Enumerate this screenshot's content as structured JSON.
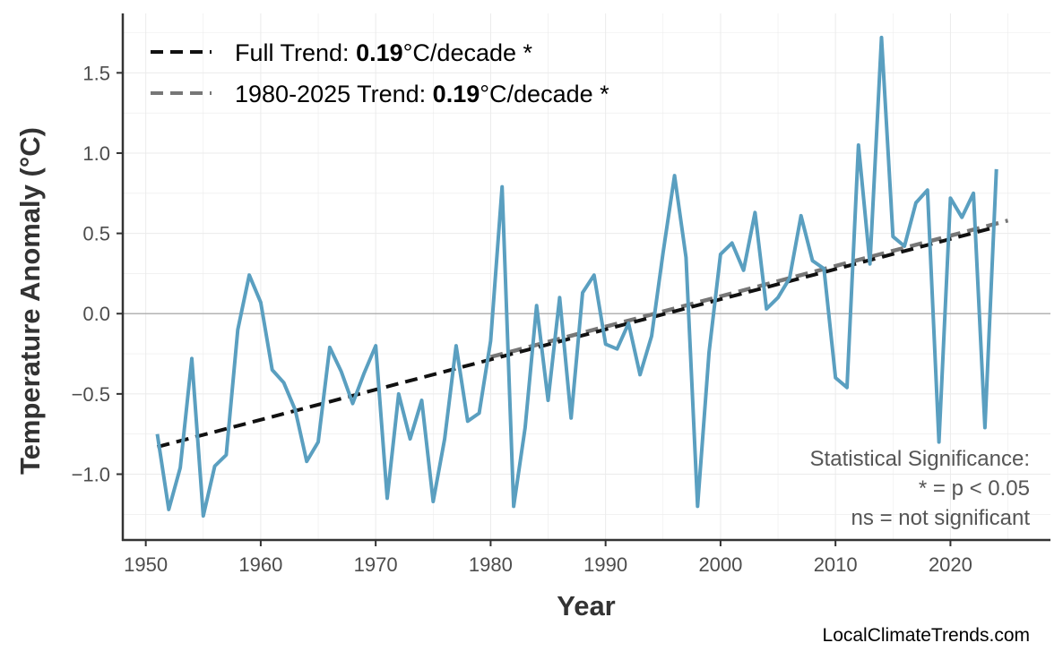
{
  "chart_data": {
    "type": "line",
    "title": "",
    "xlabel": "Year",
    "ylabel": "Temperature Anomaly (°C)",
    "xlim": [
      1948,
      2028.7
    ],
    "ylim": [
      -1.41,
      1.87
    ],
    "xticks": [
      "1950",
      "1960",
      "1970",
      "1980",
      "1990",
      "2000",
      "2010",
      "2020"
    ],
    "yticks": [
      "−1.0",
      "−0.5",
      "0.0",
      "0.5",
      "1.0",
      "1.5"
    ],
    "grid": true,
    "legend_position": "top-left",
    "colors": {
      "series": "#5a9fc0",
      "full_trend": "#111111",
      "recent_trend": "#777777",
      "zero_line": "#b3b3b3",
      "grid": "#ebebeb"
    },
    "x": [
      1951,
      1952,
      1953,
      1954,
      1955,
      1956,
      1957,
      1958,
      1959,
      1960,
      1961,
      1962,
      1963,
      1964,
      1965,
      1966,
      1967,
      1968,
      1969,
      1970,
      1971,
      1972,
      1973,
      1974,
      1975,
      1976,
      1977,
      1978,
      1979,
      1980,
      1981,
      1982,
      1983,
      1984,
      1985,
      1986,
      1987,
      1988,
      1989,
      1990,
      1991,
      1992,
      1993,
      1994,
      1995,
      1996,
      1997,
      1998,
      1999,
      2000,
      2001,
      2002,
      2003,
      2004,
      2005,
      2006,
      2007,
      2008,
      2009,
      2010,
      2011,
      2012,
      2013,
      2014,
      2015,
      2016,
      2017,
      2018,
      2019,
      2020,
      2021,
      2022,
      2023,
      2024
    ],
    "values": [
      -0.75,
      -1.22,
      -0.96,
      -0.28,
      -1.26,
      -0.95,
      -0.88,
      -0.1,
      0.24,
      0.07,
      -0.35,
      -0.43,
      -0.6,
      -0.92,
      -0.8,
      -0.21,
      -0.36,
      -0.56,
      -0.37,
      -0.2,
      -1.15,
      -0.5,
      -0.78,
      -0.54,
      -1.17,
      -0.78,
      -0.2,
      -0.67,
      -0.62,
      -0.17,
      0.79,
      -1.2,
      -0.71,
      0.05,
      -0.54,
      0.1,
      -0.65,
      0.13,
      0.24,
      -0.19,
      -0.22,
      -0.06,
      -0.38,
      -0.14,
      0.38,
      0.86,
      0.35,
      -1.2,
      -0.24,
      0.37,
      0.44,
      0.27,
      0.63,
      0.03,
      0.1,
      0.22,
      0.61,
      0.33,
      0.28,
      -0.4,
      -0.46,
      1.05,
      0.31,
      1.72,
      0.48,
      0.42,
      0.69,
      0.77,
      -0.8,
      0.72,
      0.6,
      0.75,
      -0.71,
      0.9
    ],
    "trends": [
      {
        "name": "Full Trend",
        "x": [
          1951,
          2024
        ],
        "y": [
          -0.83,
          0.54
        ],
        "rate": "0.19",
        "unit": "°C/decade *",
        "label_prefix": "Full Trend: "
      },
      {
        "name": "1980-2025 Trend",
        "x": [
          1980,
          2025
        ],
        "y": [
          -0.27,
          0.58
        ],
        "rate": "0.19",
        "unit": "°C/decade *",
        "label_prefix": "1980-2025 Trend: "
      }
    ],
    "annotation": [
      "Statistical Significance:",
      "* = p < 0.05",
      "ns = not significant"
    ],
    "watermark": "LocalClimateTrends.com"
  }
}
